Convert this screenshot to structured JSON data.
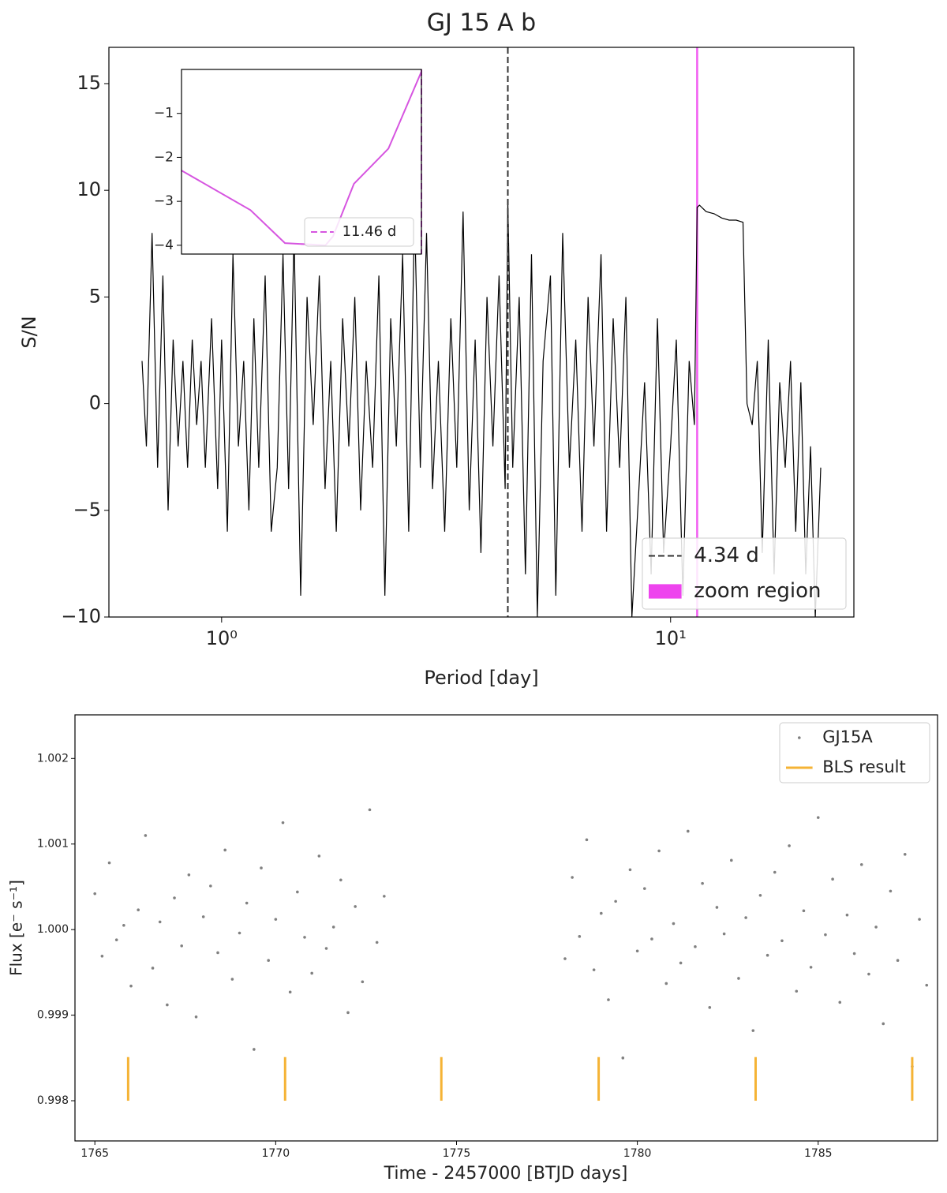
{
  "chart_data": [
    {
      "type": "line",
      "title": "GJ 15 A b",
      "xlabel": "Period [day]",
      "ylabel": "S/N",
      "xscale": "log",
      "xlim": [
        0.561,
        25.6
      ],
      "ylim": [
        -10,
        16.7
      ],
      "xticks": [
        {
          "value": 1,
          "label": "10⁰"
        },
        {
          "value": 10,
          "label": "10¹"
        }
      ],
      "yticks": [
        {
          "value": -10,
          "label": "−10"
        },
        {
          "value": -5,
          "label": "−5"
        },
        0,
        5,
        10,
        15
      ],
      "x": [
        0.665,
        0.68,
        0.7,
        0.72,
        0.74,
        0.76,
        0.78,
        0.8,
        0.82,
        0.84,
        0.86,
        0.88,
        0.9,
        0.92,
        0.95,
        0.98,
        1.0,
        1.03,
        1.06,
        1.09,
        1.12,
        1.15,
        1.18,
        1.21,
        1.25,
        1.29,
        1.33,
        1.37,
        1.41,
        1.45,
        1.5,
        1.55,
        1.6,
        1.65,
        1.7,
        1.75,
        1.8,
        1.86,
        1.92,
        1.98,
        2.04,
        2.1,
        2.17,
        2.24,
        2.31,
        2.38,
        2.45,
        2.53,
        2.61,
        2.69,
        2.77,
        2.86,
        2.95,
        3.04,
        3.14,
        3.24,
        3.34,
        3.45,
        3.56,
        3.67,
        3.78,
        3.9,
        4.02,
        4.15,
        4.28,
        4.34,
        4.45,
        4.6,
        4.75,
        4.9,
        5.05,
        5.2,
        5.4,
        5.55,
        5.75,
        5.95,
        6.15,
        6.35,
        6.55,
        6.75,
        7.0,
        7.2,
        7.45,
        7.7,
        7.95,
        8.2,
        8.5,
        8.75,
        9.05,
        9.35,
        9.65,
        10.0,
        10.3,
        10.65,
        11.0,
        11.3,
        11.46,
        11.6,
        12.0,
        12.5,
        13.0,
        13.5,
        14.0,
        14.5,
        14.8,
        15.2,
        15.6,
        16.0,
        16.5,
        17.0,
        17.5,
        18.0,
        18.5,
        19.0,
        19.5,
        20.0,
        20.5,
        21.0,
        21.6
      ],
      "series": [
        {
          "color": "#000000",
          "values": [
            2,
            -2,
            8,
            -3,
            6,
            -5,
            3,
            -2,
            2,
            -3,
            3,
            -1,
            2,
            -3,
            4,
            -4,
            3,
            -6,
            7,
            -2,
            2,
            -5,
            4,
            -3,
            6,
            -6,
            -3,
            7,
            -4,
            8,
            -9,
            5,
            -1,
            6,
            -4,
            2,
            -6,
            4,
            -2,
            5,
            -5,
            2,
            -3,
            6,
            -9,
            4,
            -2,
            7,
            -6,
            9,
            -3,
            8,
            -4,
            2,
            -6,
            4,
            -3,
            9,
            -5,
            3,
            -7,
            5,
            -2,
            6,
            -4,
            9.5,
            -3,
            5,
            -8,
            7,
            -10,
            2,
            6,
            -9,
            8,
            -3,
            3,
            -6,
            5,
            -2,
            7,
            -6,
            4,
            -3,
            5,
            -10,
            -4,
            1,
            -8,
            4,
            -7,
            -2,
            3,
            -9,
            2,
            -1,
            9.2,
            9.3,
            9.0,
            8.9,
            8.7,
            8.6,
            8.6,
            8.5,
            0,
            -1,
            2,
            -7,
            3,
            -8,
            1,
            -3,
            2,
            -6,
            1,
            -8,
            -2,
            -10,
            -3
          ]
        }
      ],
      "vlines": [
        {
          "name": "4.34 d",
          "x": 4.34,
          "color": "#333333",
          "dashed": true
        }
      ],
      "span": {
        "name": "zoom region",
        "x": [
          11.4,
          11.52
        ],
        "color": "#ee44ee"
      },
      "legend": "lower right",
      "inset": {
        "type": "line",
        "xlim": [
          11.3,
          11.46
        ],
        "ylim": [
          -4.2,
          0
        ],
        "yticks": [
          {
            "value": -1,
            "label": "−1"
          },
          {
            "value": -2,
            "label": "−2"
          },
          {
            "value": -3,
            "label": "−3"
          },
          {
            "value": -4,
            "label": "−4"
          }
        ],
        "x": [
          11.3,
          11.346,
          11.369,
          11.396,
          11.401,
          11.415,
          11.438,
          11.46
        ],
        "series": [
          {
            "color": "#d655e0",
            "values": [
              -2.3,
              -3.2,
              -3.95,
              -4.0,
              -3.8,
              -2.6,
              -1.8,
              -0.05
            ]
          }
        ],
        "vlines": [
          {
            "name": "11.46 d",
            "x": 11.46,
            "color": "#d655e0",
            "dashed": true
          }
        ],
        "legend": "lower right"
      }
    },
    {
      "type": "scatter",
      "xlabel": "Time - 2457000 [BTJD days]",
      "ylabel": "Flux [e⁻ s⁻¹]",
      "xlim": [
        1764.45,
        1788.3
      ],
      "ylim": [
        0.99753,
        1.00251
      ],
      "xticks": [
        1765,
        1770,
        1775,
        1780,
        1785
      ],
      "yticks": [
        0.998,
        0.999,
        {
          "value": 1,
          "label": "1.000"
        },
        1.001,
        1.002
      ],
      "series": [
        {
          "name": "GJ15A",
          "color": "#808080",
          "x": [
            1765,
            1765.2,
            1765.4,
            1765.6,
            1765.8,
            1766,
            1766.2,
            1766.4,
            1766.6,
            1766.8,
            1767,
            1767.2,
            1767.4,
            1767.6,
            1767.8,
            1768,
            1768.2,
            1768.4,
            1768.6,
            1768.8,
            1769,
            1769.2,
            1769.4,
            1769.6,
            1769.8,
            1770,
            1770.2,
            1770.4,
            1770.6,
            1770.8,
            1771,
            1771.2,
            1771.4,
            1771.6,
            1771.8,
            1772,
            1772.2,
            1772.4,
            1772.6,
            1772.8,
            1773,
            1778,
            1778.2,
            1778.4,
            1778.6,
            1778.8,
            1779,
            1779.2,
            1779.4,
            1779.6,
            1779.8,
            1780,
            1780.2,
            1780.4,
            1780.6,
            1780.8,
            1781,
            1781.2,
            1781.4,
            1781.6,
            1781.8,
            1782,
            1782.2,
            1782.4,
            1782.6,
            1782.8,
            1783,
            1783.2,
            1783.4,
            1783.6,
            1783.8,
            1784,
            1784.2,
            1784.4,
            1784.6,
            1784.8,
            1785,
            1785.2,
            1785.4,
            1785.6,
            1785.8,
            1786,
            1786.2,
            1786.4,
            1786.6,
            1786.8,
            1787,
            1787.2,
            1787.4,
            1787.6,
            1787.8,
            1788
          ],
          "values": [
            1.00042,
            0.99969,
            1.00078,
            0.99988,
            1.00005,
            0.99934,
            1.00023,
            1.0011,
            0.99955,
            1.00009,
            0.99912,
            1.00037,
            0.99981,
            1.00064,
            0.99898,
            1.00015,
            1.00051,
            0.99973,
            1.00093,
            0.99942,
            0.99996,
            1.00031,
            0.9986,
            1.00072,
            0.99964,
            1.00012,
            1.00125,
            0.99927,
            1.00044,
            0.99991,
            0.99949,
            1.00086,
            0.99978,
            1.00003,
            1.00058,
            0.99903,
            1.00027,
            0.99939,
            1.0014,
            0.99985,
            1.00039,
            0.99966,
            1.00061,
            0.99992,
            1.00105,
            0.99953,
            1.00019,
            0.99918,
            1.00033,
            0.9985,
            1.0007,
            0.99975,
            1.00048,
            0.99989,
            1.00092,
            0.99937,
            1.00007,
            0.99961,
            1.00115,
            0.9998,
            1.00054,
            0.99909,
            1.00026,
            0.99995,
            1.00081,
            0.99943,
            1.00014,
            0.99882,
            1.0004,
            0.9997,
            1.00067,
            0.99987,
            1.00098,
            0.99928,
            1.00022,
            0.99956,
            1.00131,
            0.99994,
            1.00059,
            0.99915,
            1.00017,
            0.99972,
            1.00076,
            0.99948,
            1.00003,
            0.9989,
            1.00045,
            0.99964,
            1.00088,
            0.9984,
            1.00012,
            0.99935
          ]
        }
      ],
      "vlines": {
        "name": "BLS result",
        "color": "#f5b335",
        "x": [
          1765.92,
          1770.26,
          1774.58,
          1778.93,
          1783.27,
          1787.6
        ],
        "ymin": 0.998,
        "ymax": 0.99851
      },
      "legend": "upper right"
    }
  ]
}
